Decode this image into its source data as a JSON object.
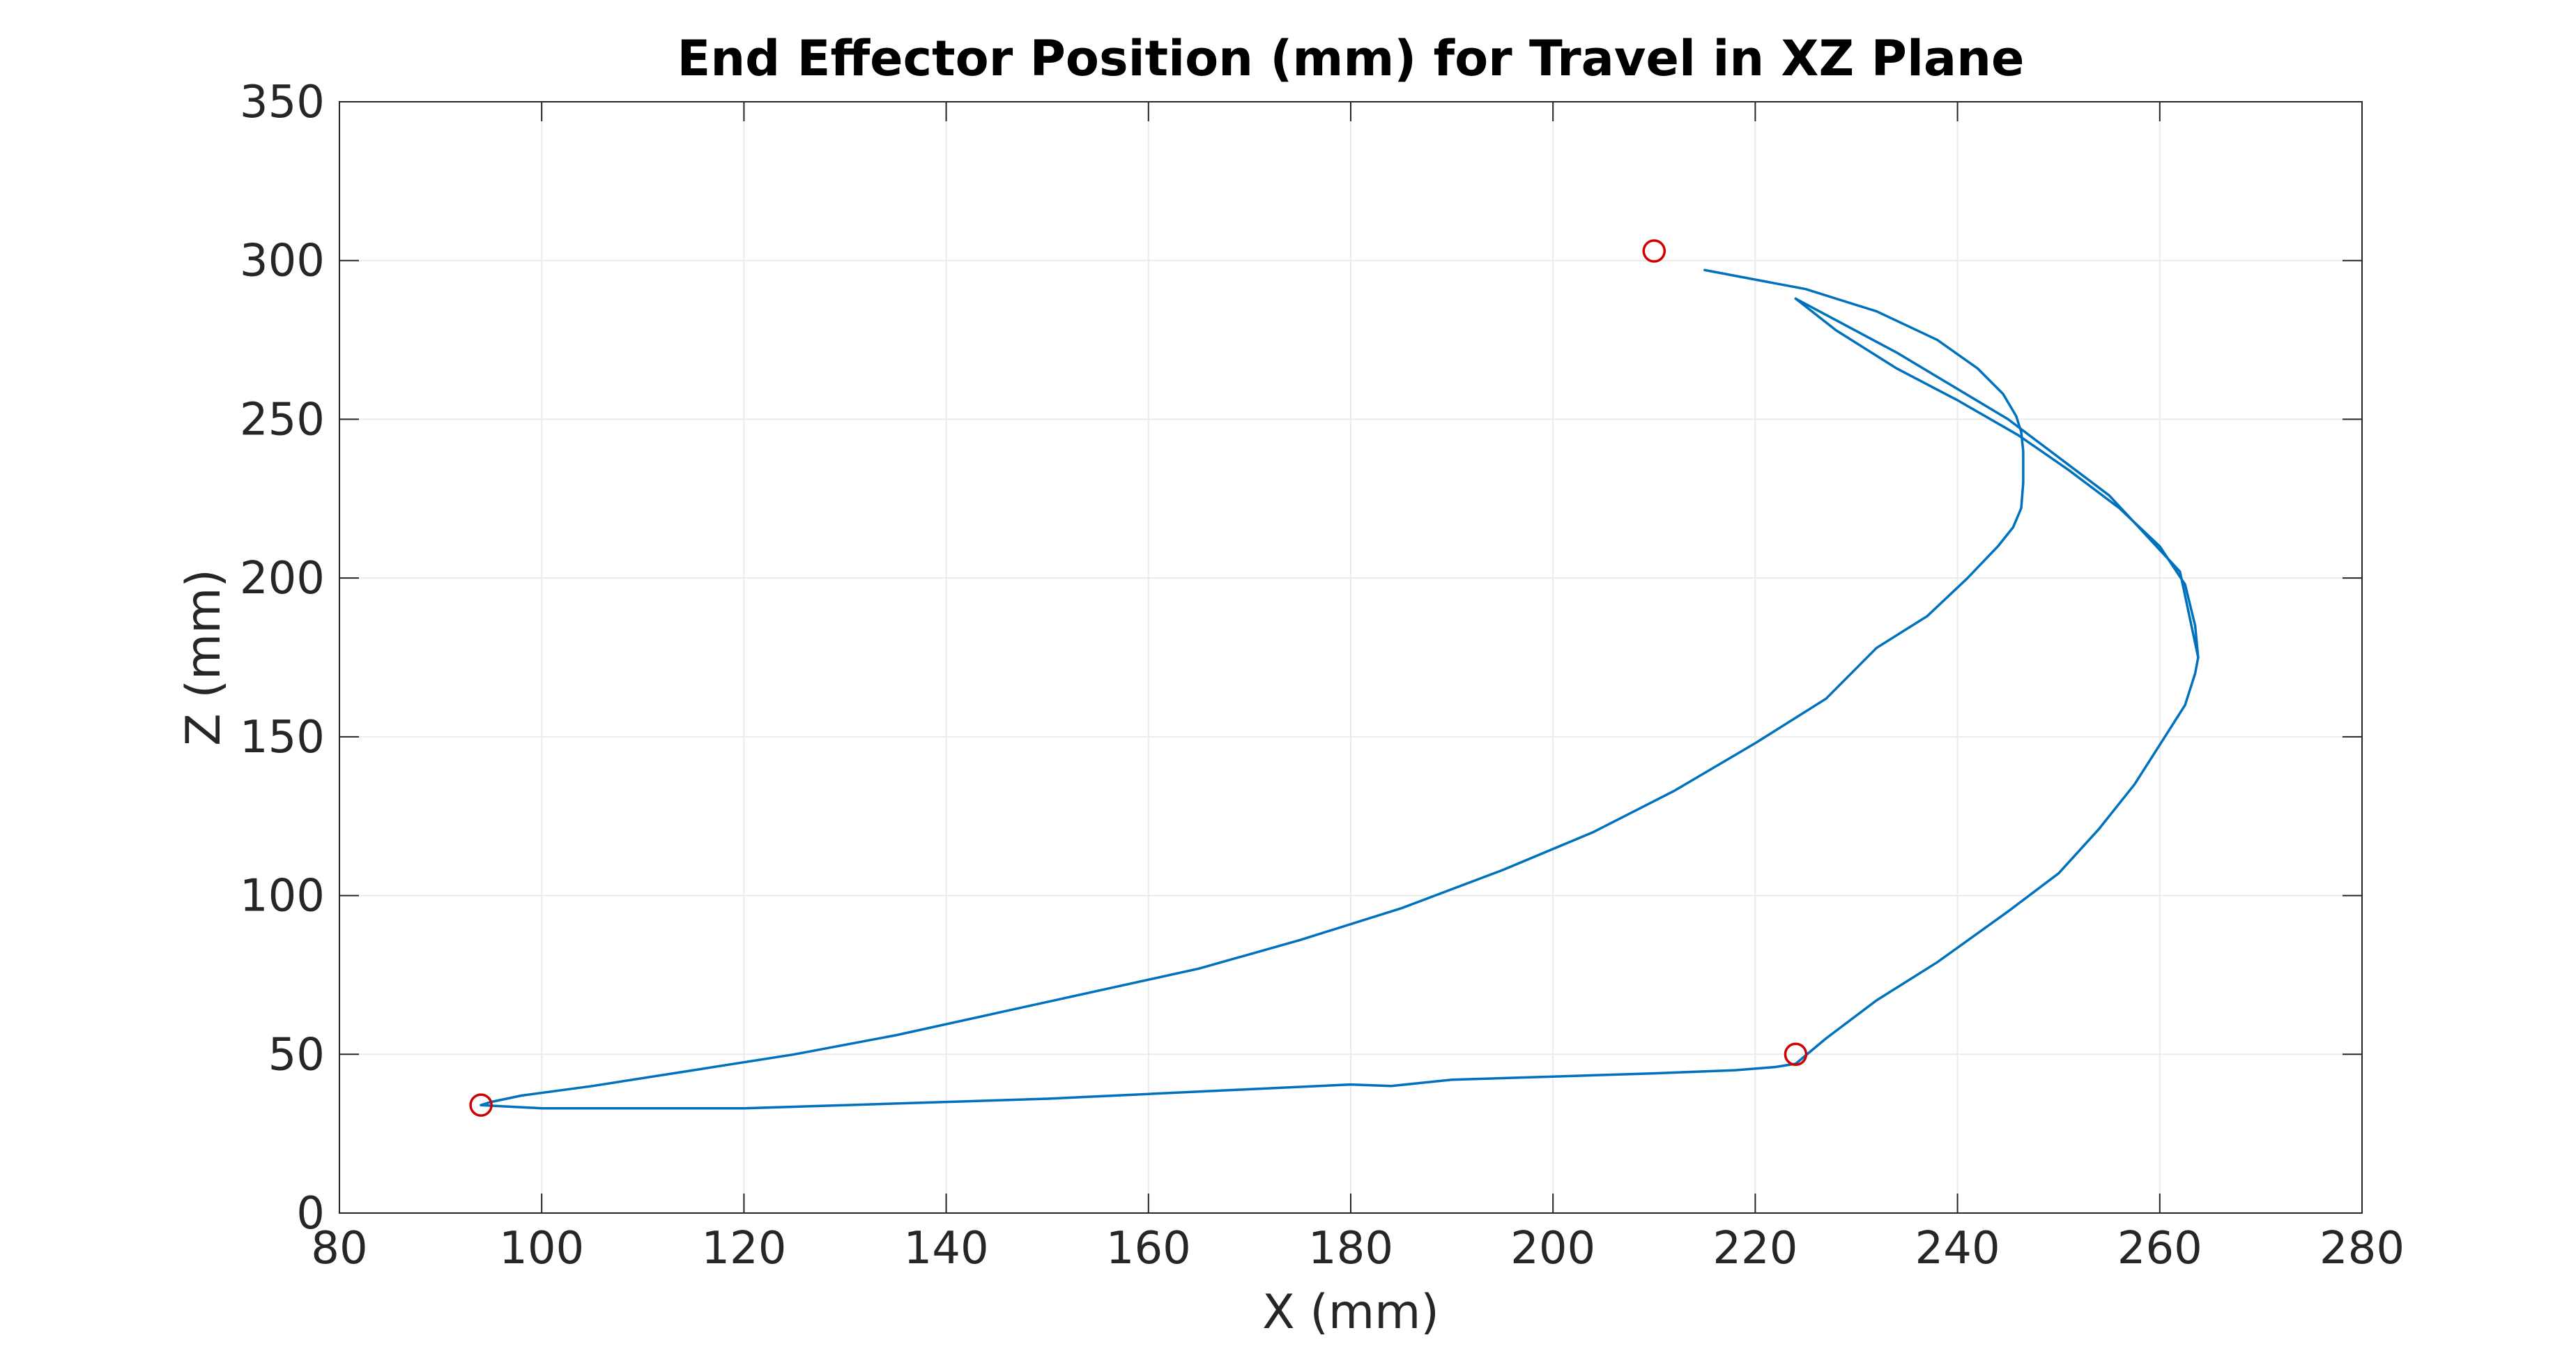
{
  "chart_data": {
    "type": "line",
    "title": "End Effector Position (mm) for Travel in XZ Plane",
    "xlabel": "X (mm)",
    "ylabel": "Z (mm)",
    "xlim": [
      80,
      280
    ],
    "ylim": [
      0,
      350
    ],
    "xticks": [
      80,
      100,
      120,
      140,
      160,
      180,
      200,
      220,
      240,
      260,
      280
    ],
    "yticks": [
      0,
      50,
      100,
      150,
      200,
      250,
      300,
      350
    ],
    "grid": true,
    "legend": "none",
    "colors": {
      "line": "#0072BD",
      "marker": "#D00000",
      "axis": "#262626",
      "grid": "#ebebeb"
    },
    "series": [
      {
        "style": "line",
        "x": [
          215,
          225,
          232,
          238,
          242,
          244.5,
          245.8,
          246.3,
          246.5,
          246.5,
          246.3,
          245.5,
          244,
          241,
          237,
          232,
          227,
          220,
          212,
          204,
          195,
          185,
          175,
          165,
          155,
          145,
          135,
          125,
          115,
          105,
          98,
          95,
          94
        ],
        "y": [
          297,
          291,
          284,
          275,
          266,
          258,
          251,
          246,
          240,
          230,
          222,
          216,
          210,
          200,
          188,
          178,
          162,
          148,
          133,
          120,
          108,
          96,
          86,
          77,
          70,
          63,
          56,
          50,
          45,
          40,
          37,
          35,
          34
        ]
      },
      {
        "style": "line",
        "x": [
          94,
          100,
          110,
          120,
          130,
          140,
          150,
          160,
          170,
          180,
          184,
          190,
          200,
          210,
          218,
          222,
          224,
          227,
          232,
          238,
          245,
          250,
          254,
          257.5,
          260.5,
          262.5,
          263.5,
          263.8,
          263.5,
          262.5,
          260,
          256,
          251,
          246,
          240,
          234,
          228,
          224
        ],
        "y": [
          34,
          33,
          33,
          33,
          34,
          35,
          36,
          37.5,
          39,
          40.5,
          40,
          42,
          43,
          44,
          45,
          46,
          47,
          55,
          67,
          79,
          95,
          107,
          121,
          135,
          150,
          160,
          170,
          175,
          185,
          198,
          210,
          222,
          234,
          245,
          256,
          266,
          278,
          288
        ]
      },
      {
        "style": "line",
        "x": [
          224,
          234,
          245,
          255,
          262,
          263.8
        ],
        "y": [
          288,
          271,
          250,
          226,
          202,
          175
        ]
      },
      {
        "style": "markers",
        "x": [
          210,
          94,
          224
        ],
        "y": [
          303,
          34,
          50
        ]
      }
    ]
  }
}
